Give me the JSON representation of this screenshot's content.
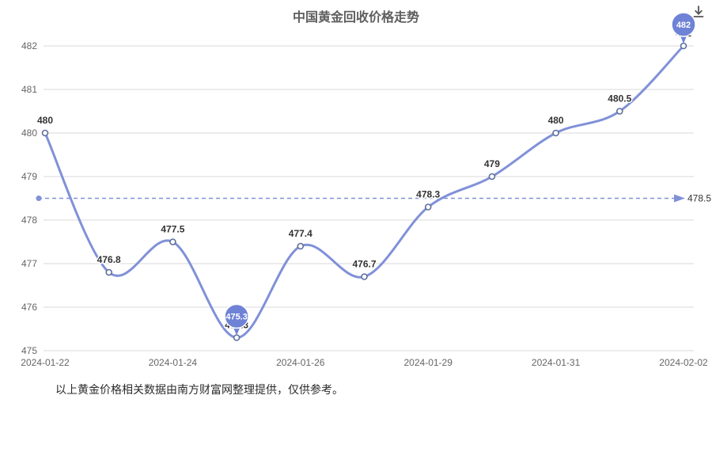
{
  "header": {
    "title": "中国黄金回收价格走势"
  },
  "toolbar": {
    "download_tooltip": "下载"
  },
  "footer": {
    "note": "以上黄金价格相关数据由南方财富网整理提供，仅供参考。"
  },
  "chart_data": {
    "type": "line",
    "smooth": true,
    "title": "中国黄金回收价格走势",
    "num_points": 11,
    "values": [
      480,
      476.8,
      477.5,
      475.3,
      477.4,
      476.7,
      478.3,
      479,
      480,
      480.5,
      482
    ],
    "point_labels": [
      "480",
      "476.8",
      "477.5",
      "475.3",
      "477.4",
      "476.7",
      "478.3",
      "479",
      "480",
      "480.5",
      "482"
    ],
    "balloon_point_indices": [
      3,
      10
    ],
    "x_axis": {
      "tick_labels": [
        "2024-01-22",
        "2024-01-24",
        "2024-01-26",
        "2024-01-29",
        "2024-01-31",
        "2024-02-02"
      ],
      "tick_indices": [
        0,
        2,
        4,
        6,
        8,
        10
      ]
    },
    "y_axis": {
      "ticks": [
        475,
        476,
        477,
        478,
        479,
        480,
        481,
        482
      ],
      "ylim": [
        475,
        482
      ]
    },
    "reference_line": {
      "value": 478.5,
      "label": "478.5",
      "style": "dashed",
      "arrow": true
    },
    "legend": "none",
    "grid": "horizontal",
    "colors": {
      "line": "#8091d8",
      "balloon": "#6e82d6",
      "point_border": "#5f6f9e",
      "grid": "#d9d9d9",
      "axis_text": "#666666",
      "label_text": "#333333",
      "title_text": "#5e5e5e",
      "icon": "#555555"
    }
  }
}
